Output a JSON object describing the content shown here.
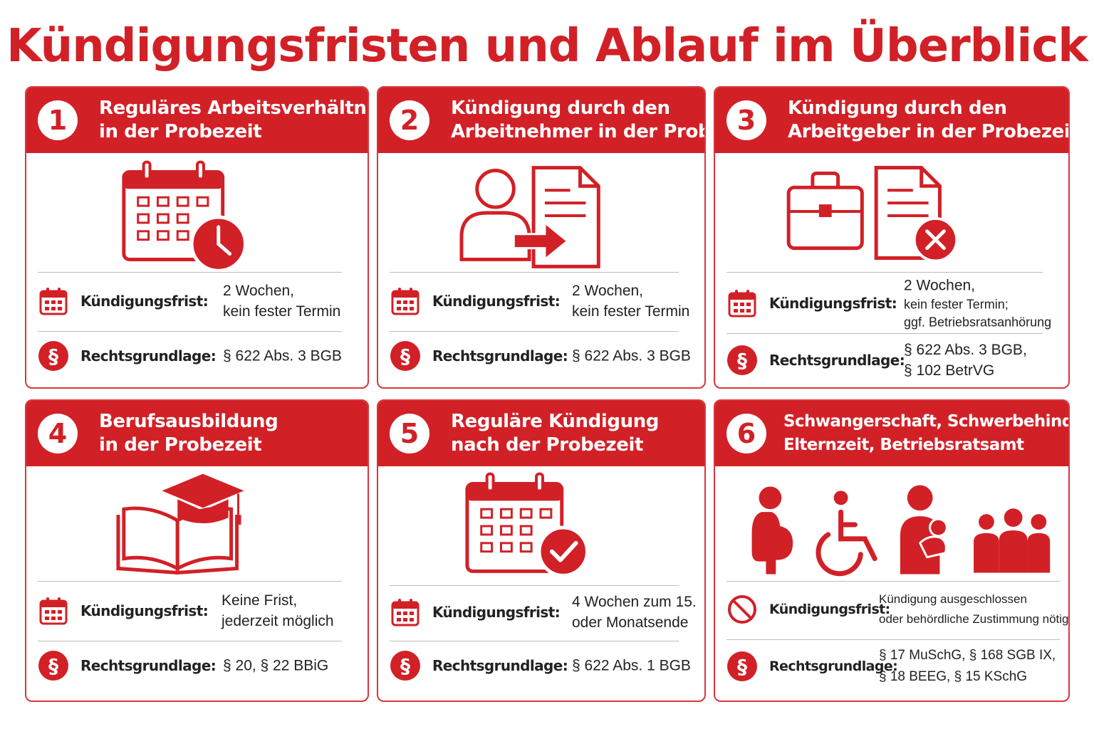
{
  "title": "Kündigungsfristen und Ablauf im Überblick",
  "labels": {
    "frist": "Kündigungsfrist:",
    "grundlage": "Rechtsgrundlage:"
  },
  "colors": {
    "accent": "#d22027",
    "divider": "#bdbdbd",
    "text": "#222222"
  },
  "cards": [
    {
      "number": "1",
      "title": [
        "Reguläres Arbeitsverhältnis",
        "in der Probezeit"
      ],
      "illustration": "calendar-clock-icon",
      "frist_icon": "calendar-icon",
      "frist": [
        "2 Wochen,",
        "kein fester Termin"
      ],
      "grundlage_icon": "paragraph-icon",
      "grundlage": [
        "§ 622 Abs. 3 BGB"
      ]
    },
    {
      "number": "2",
      "title": [
        "Kündigung durch den",
        "Arbeitnehmer in der Probezeit"
      ],
      "illustration": "person-document-arrow-icon",
      "frist_icon": "calendar-icon",
      "frist": [
        "2 Wochen,",
        "kein fester Termin"
      ],
      "grundlage_icon": "paragraph-icon",
      "grundlage": [
        "§ 622 Abs. 3 BGB"
      ]
    },
    {
      "number": "3",
      "title": [
        "Kündigung durch den",
        "Arbeitgeber in der Probezeit"
      ],
      "illustration": "briefcase-document-cross-icon",
      "frist_icon": "calendar-icon",
      "frist": [
        "2 Wochen,",
        "kein fester Termin;",
        "ggf. Betriebsratsanhörung"
      ],
      "grundlage_icon": "paragraph-icon",
      "grundlage": [
        "§ 622 Abs. 3 BGB,",
        "§ 102 BetrVG"
      ]
    },
    {
      "number": "4",
      "title": [
        "Berufsausbildung",
        "in der Probezeit"
      ],
      "illustration": "book-graduation-cap-icon",
      "frist_icon": "calendar-icon",
      "frist": [
        "Keine Frist,",
        "jederzeit möglich"
      ],
      "grundlage_icon": "paragraph-icon",
      "grundlage": [
        "§ 20, § 22 BBiG"
      ]
    },
    {
      "number": "5",
      "title": [
        "Reguläre Kündigung",
        "nach der Probezeit"
      ],
      "illustration": "calendar-check-icon",
      "frist_icon": "calendar-icon",
      "frist": [
        "4 Wochen zum 15.",
        "oder Monatsende"
      ],
      "grundlage_icon": "paragraph-icon",
      "grundlage": [
        "§ 622 Abs. 1 BGB"
      ]
    },
    {
      "number": "6",
      "title": [
        "Schwangerschaft, Schwerbehinderung,",
        "Elternzeit, Betriebsratsamt"
      ],
      "illustration": "protected-groups-icons",
      "frist_icon": "prohibited-icon",
      "frist": [
        "Kündigung ausgeschlossen",
        "oder behördliche Zustimmung nötig"
      ],
      "grundlage_icon": "paragraph-icon",
      "grundlage": [
        "§ 17 MuSchG, § 168 SGB IX,",
        "§ 18 BEEG, § 15 KSchG"
      ]
    }
  ]
}
